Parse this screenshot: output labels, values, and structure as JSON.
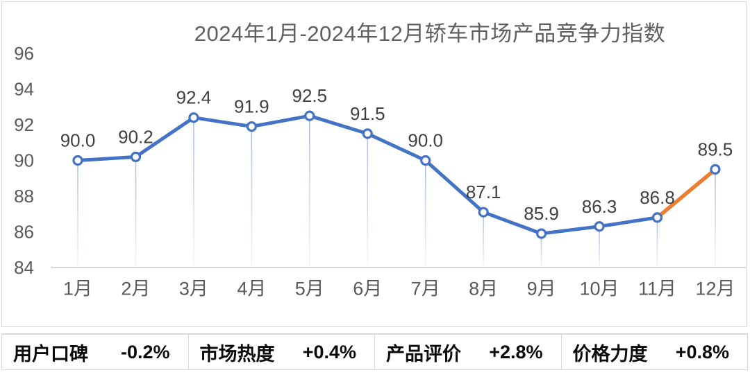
{
  "chart_data": {
    "type": "line",
    "title": "2024年1月-2024年12月轿车市场产品竞争力指数",
    "categories": [
      "1月",
      "2月",
      "3月",
      "4月",
      "5月",
      "6月",
      "7月",
      "8月",
      "9月",
      "10月",
      "11月",
      "12月"
    ],
    "values": [
      90.0,
      90.2,
      92.4,
      91.9,
      92.5,
      91.5,
      90.0,
      87.1,
      85.9,
      86.3,
      86.8,
      89.5
    ],
    "ylim": [
      84,
      96
    ],
    "yticks": [
      96,
      94,
      92,
      90,
      88,
      86,
      84
    ],
    "grid": false,
    "legend": "none",
    "marker": "open-circle",
    "line_color": "#4472C4",
    "last_segment_color": "#ED7D31",
    "drop_line_color": "#4472C4",
    "axis_line_color": "#d9d9d9",
    "axis_text_color": "#595959",
    "data_label_color": "#404040"
  },
  "stats": [
    {
      "label": "用户口碑",
      "value": "-0.2%"
    },
    {
      "label": "市场热度",
      "value": "+0.4%"
    },
    {
      "label": "产品评价",
      "value": "+2.8%"
    },
    {
      "label": "价格力度",
      "value": "+0.8%"
    }
  ]
}
